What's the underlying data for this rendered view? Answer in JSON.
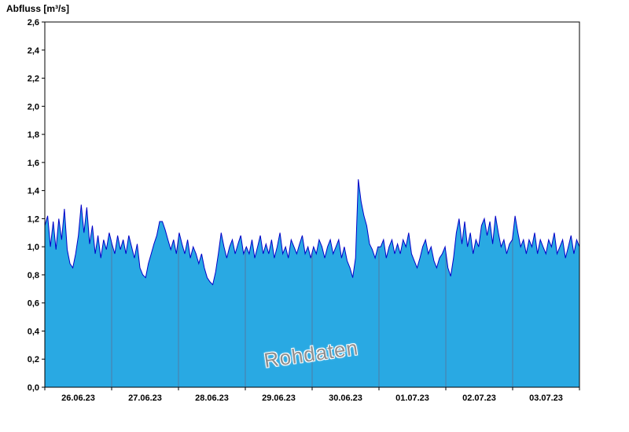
{
  "title": "Abfluss [m³/s]",
  "watermark": "Rohdaten",
  "chart_data": {
    "type": "area",
    "title": "Abfluss [m³/s]",
    "xlabel": "",
    "ylabel": "Abfluss [m³/s]",
    "ylim": [
      0,
      2.6
    ],
    "y_tick_step": 0.2,
    "y_tick_labels": [
      "0,0",
      "0,2",
      "0,4",
      "0,6",
      "0,8",
      "1,0",
      "1,2",
      "1,4",
      "1,6",
      "1,8",
      "2,0",
      "2,2",
      "2,4",
      "2,6"
    ],
    "x_categories": [
      "26.06.23",
      "27.06.23",
      "28.06.23",
      "29.06.23",
      "30.06.23",
      "01.07.23",
      "02.07.23",
      "03.07.23"
    ],
    "x_days": 8,
    "samples_per_day": 24,
    "grid": "vertical day gridlines visible inside filled area",
    "legend": "none",
    "annotation": "Rohdaten",
    "colors": {
      "area_fill": "#29A9E3",
      "line": "#0000C8",
      "gridline": "#4f7ba6",
      "axis": "#000000",
      "watermark_text": "#8f8f8f",
      "background": "#ffffff"
    },
    "values": [
      1.15,
      1.22,
      1.0,
      1.18,
      0.98,
      1.2,
      1.05,
      1.27,
      0.98,
      0.88,
      0.85,
      0.95,
      1.08,
      1.3,
      1.1,
      1.28,
      1.02,
      1.15,
      0.95,
      1.08,
      0.92,
      1.05,
      0.98,
      1.1,
      1.02,
      0.95,
      1.08,
      0.98,
      1.05,
      0.95,
      1.08,
      1.0,
      0.92,
      1.02,
      0.85,
      0.8,
      0.78,
      0.88,
      0.95,
      1.02,
      1.08,
      1.18,
      1.18,
      1.12,
      1.05,
      0.98,
      1.05,
      0.95,
      1.1,
      1.02,
      0.95,
      1.05,
      0.92,
      1.0,
      0.95,
      0.88,
      0.95,
      0.85,
      0.78,
      0.75,
      0.73,
      0.82,
      0.95,
      1.1,
      1.0,
      0.92,
      1.0,
      1.05,
      0.95,
      1.02,
      1.08,
      0.95,
      1.0,
      0.95,
      1.05,
      0.92,
      1.0,
      1.08,
      0.95,
      1.02,
      0.95,
      1.05,
      0.92,
      1.0,
      1.1,
      0.95,
      1.0,
      0.92,
      1.05,
      1.0,
      0.95,
      1.02,
      1.08,
      0.95,
      1.0,
      0.92,
      1.0,
      0.95,
      1.05,
      1.0,
      0.92,
      1.0,
      1.05,
      0.95,
      1.0,
      1.05,
      0.92,
      1.0,
      0.9,
      0.85,
      0.78,
      0.92,
      1.48,
      1.32,
      1.22,
      1.15,
      1.02,
      0.98,
      0.92,
      1.0,
      1.0,
      1.05,
      0.92,
      1.0,
      1.05,
      0.95,
      1.02,
      0.95,
      1.05,
      1.0,
      1.1,
      0.95,
      0.9,
      0.85,
      0.92,
      1.0,
      1.05,
      0.95,
      1.0,
      0.9,
      0.85,
      0.92,
      0.95,
      1.0,
      0.85,
      0.79,
      0.92,
      1.1,
      1.2,
      1.02,
      1.18,
      1.0,
      1.1,
      0.95,
      1.05,
      1.0,
      1.15,
      1.2,
      1.08,
      1.18,
      1.02,
      1.22,
      1.1,
      1.0,
      1.05,
      0.95,
      1.02,
      1.05,
      1.22,
      1.1,
      1.0,
      1.05,
      0.95,
      1.05,
      1.0,
      1.1,
      0.95,
      1.05,
      1.0,
      0.95,
      1.05,
      1.0,
      1.1,
      0.95,
      1.0,
      1.05,
      0.92,
      1.0,
      1.08,
      0.95,
      1.05,
      1.0
    ]
  }
}
